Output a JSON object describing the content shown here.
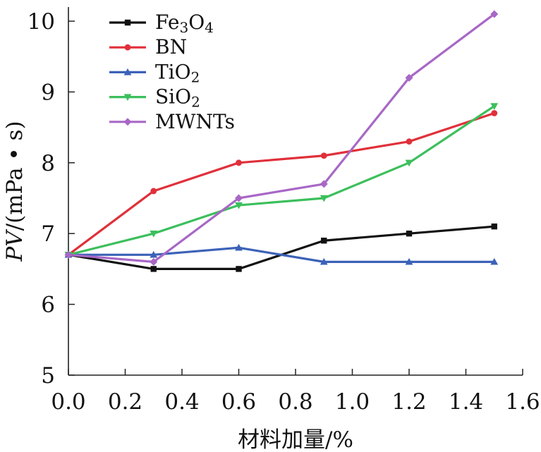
{
  "chart_data": {
    "type": "line",
    "title": "",
    "xlabel": "材料加量/%",
    "ylabel": {
      "italic": "PV",
      "rest": "/(mPa • s)"
    },
    "xlim": [
      0.0,
      1.6
    ],
    "ylim": [
      5,
      10.2
    ],
    "xticks": [
      0.0,
      0.2,
      0.4,
      0.6,
      0.8,
      1.0,
      1.2,
      1.4,
      1.6
    ],
    "xtick_labels": [
      "0.0",
      "0.2",
      "0.4",
      "0.6",
      "0.8",
      "1.0",
      "1.2",
      "1.4",
      "1.6"
    ],
    "yticks": [
      5,
      6,
      7,
      8,
      9,
      10
    ],
    "ytick_labels": [
      "5",
      "6",
      "7",
      "8",
      "9",
      "10"
    ],
    "legend_position": "top-left",
    "grid": false,
    "x": [
      0.0,
      0.3,
      0.6,
      0.9,
      1.2,
      1.5
    ],
    "series": [
      {
        "name": "Fe3O4",
        "label_parts": [
          "Fe",
          "3",
          "O",
          "4"
        ],
        "color": "#111111",
        "marker": "square",
        "values": [
          6.7,
          6.5,
          6.5,
          6.9,
          7.0,
          7.1
        ]
      },
      {
        "name": "BN",
        "label_parts": [
          "BN"
        ],
        "color": "#e0303a",
        "marker": "circle",
        "values": [
          6.7,
          7.6,
          8.0,
          8.1,
          8.3,
          8.7
        ]
      },
      {
        "name": "TiO2",
        "label_parts": [
          "TiO",
          "2"
        ],
        "color": "#3c62b8",
        "marker": "triangle-up",
        "values": [
          6.7,
          6.7,
          6.8,
          6.6,
          6.6,
          6.6
        ]
      },
      {
        "name": "SiO2",
        "label_parts": [
          "SiO",
          "2"
        ],
        "color": "#3cbf5c",
        "marker": "triangle-down",
        "values": [
          6.7,
          7.0,
          7.4,
          7.5,
          8.0,
          8.8
        ]
      },
      {
        "name": "MWNTs",
        "label_parts": [
          "MWNTs"
        ],
        "color": "#a867c6",
        "marker": "diamond",
        "values": [
          6.7,
          6.6,
          7.5,
          7.7,
          9.2,
          10.1
        ]
      }
    ]
  }
}
